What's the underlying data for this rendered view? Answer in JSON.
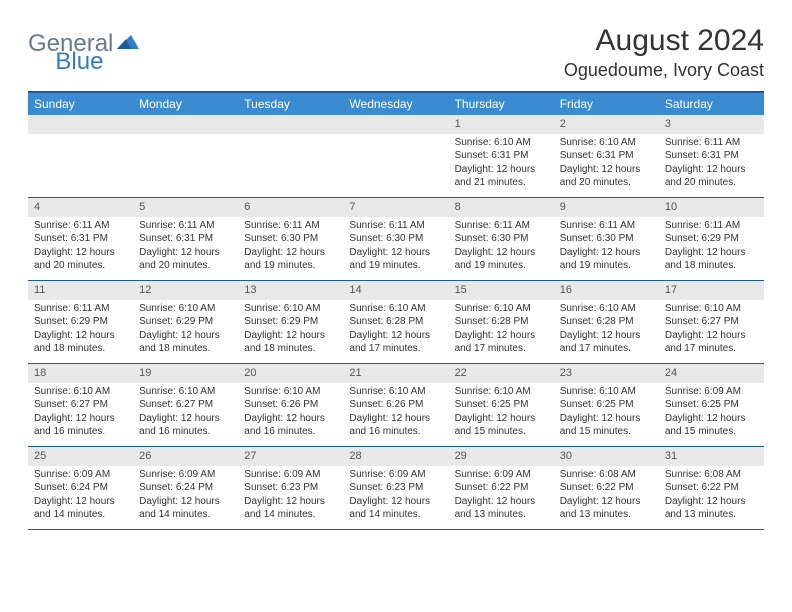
{
  "logo": {
    "text1": "General",
    "text2": "Blue"
  },
  "title": "August 2024",
  "location": "Oguedoume, Ivory Coast",
  "colors": {
    "header_bg": "#3b8bd0",
    "header_border": "#1d5c9b",
    "daynum_bg": "#e8e8e8",
    "logo_gray": "#6b7a85",
    "logo_blue": "#2f7bc4",
    "text": "#333333"
  },
  "weekdays": [
    "Sunday",
    "Monday",
    "Tuesday",
    "Wednesday",
    "Thursday",
    "Friday",
    "Saturday"
  ],
  "weeks": [
    [
      {
        "empty": true
      },
      {
        "empty": true
      },
      {
        "empty": true
      },
      {
        "empty": true
      },
      {
        "day": "1",
        "sunrise": "Sunrise: 6:10 AM",
        "sunset": "Sunset: 6:31 PM",
        "dl1": "Daylight: 12 hours",
        "dl2": "and 21 minutes."
      },
      {
        "day": "2",
        "sunrise": "Sunrise: 6:10 AM",
        "sunset": "Sunset: 6:31 PM",
        "dl1": "Daylight: 12 hours",
        "dl2": "and 20 minutes."
      },
      {
        "day": "3",
        "sunrise": "Sunrise: 6:11 AM",
        "sunset": "Sunset: 6:31 PM",
        "dl1": "Daylight: 12 hours",
        "dl2": "and 20 minutes."
      }
    ],
    [
      {
        "day": "4",
        "sunrise": "Sunrise: 6:11 AM",
        "sunset": "Sunset: 6:31 PM",
        "dl1": "Daylight: 12 hours",
        "dl2": "and 20 minutes."
      },
      {
        "day": "5",
        "sunrise": "Sunrise: 6:11 AM",
        "sunset": "Sunset: 6:31 PM",
        "dl1": "Daylight: 12 hours",
        "dl2": "and 20 minutes."
      },
      {
        "day": "6",
        "sunrise": "Sunrise: 6:11 AM",
        "sunset": "Sunset: 6:30 PM",
        "dl1": "Daylight: 12 hours",
        "dl2": "and 19 minutes."
      },
      {
        "day": "7",
        "sunrise": "Sunrise: 6:11 AM",
        "sunset": "Sunset: 6:30 PM",
        "dl1": "Daylight: 12 hours",
        "dl2": "and 19 minutes."
      },
      {
        "day": "8",
        "sunrise": "Sunrise: 6:11 AM",
        "sunset": "Sunset: 6:30 PM",
        "dl1": "Daylight: 12 hours",
        "dl2": "and 19 minutes."
      },
      {
        "day": "9",
        "sunrise": "Sunrise: 6:11 AM",
        "sunset": "Sunset: 6:30 PM",
        "dl1": "Daylight: 12 hours",
        "dl2": "and 19 minutes."
      },
      {
        "day": "10",
        "sunrise": "Sunrise: 6:11 AM",
        "sunset": "Sunset: 6:29 PM",
        "dl1": "Daylight: 12 hours",
        "dl2": "and 18 minutes."
      }
    ],
    [
      {
        "day": "11",
        "sunrise": "Sunrise: 6:11 AM",
        "sunset": "Sunset: 6:29 PM",
        "dl1": "Daylight: 12 hours",
        "dl2": "and 18 minutes."
      },
      {
        "day": "12",
        "sunrise": "Sunrise: 6:10 AM",
        "sunset": "Sunset: 6:29 PM",
        "dl1": "Daylight: 12 hours",
        "dl2": "and 18 minutes."
      },
      {
        "day": "13",
        "sunrise": "Sunrise: 6:10 AM",
        "sunset": "Sunset: 6:29 PM",
        "dl1": "Daylight: 12 hours",
        "dl2": "and 18 minutes."
      },
      {
        "day": "14",
        "sunrise": "Sunrise: 6:10 AM",
        "sunset": "Sunset: 6:28 PM",
        "dl1": "Daylight: 12 hours",
        "dl2": "and 17 minutes."
      },
      {
        "day": "15",
        "sunrise": "Sunrise: 6:10 AM",
        "sunset": "Sunset: 6:28 PM",
        "dl1": "Daylight: 12 hours",
        "dl2": "and 17 minutes."
      },
      {
        "day": "16",
        "sunrise": "Sunrise: 6:10 AM",
        "sunset": "Sunset: 6:28 PM",
        "dl1": "Daylight: 12 hours",
        "dl2": "and 17 minutes."
      },
      {
        "day": "17",
        "sunrise": "Sunrise: 6:10 AM",
        "sunset": "Sunset: 6:27 PM",
        "dl1": "Daylight: 12 hours",
        "dl2": "and 17 minutes."
      }
    ],
    [
      {
        "day": "18",
        "sunrise": "Sunrise: 6:10 AM",
        "sunset": "Sunset: 6:27 PM",
        "dl1": "Daylight: 12 hours",
        "dl2": "and 16 minutes."
      },
      {
        "day": "19",
        "sunrise": "Sunrise: 6:10 AM",
        "sunset": "Sunset: 6:27 PM",
        "dl1": "Daylight: 12 hours",
        "dl2": "and 16 minutes."
      },
      {
        "day": "20",
        "sunrise": "Sunrise: 6:10 AM",
        "sunset": "Sunset: 6:26 PM",
        "dl1": "Daylight: 12 hours",
        "dl2": "and 16 minutes."
      },
      {
        "day": "21",
        "sunrise": "Sunrise: 6:10 AM",
        "sunset": "Sunset: 6:26 PM",
        "dl1": "Daylight: 12 hours",
        "dl2": "and 16 minutes."
      },
      {
        "day": "22",
        "sunrise": "Sunrise: 6:10 AM",
        "sunset": "Sunset: 6:25 PM",
        "dl1": "Daylight: 12 hours",
        "dl2": "and 15 minutes."
      },
      {
        "day": "23",
        "sunrise": "Sunrise: 6:10 AM",
        "sunset": "Sunset: 6:25 PM",
        "dl1": "Daylight: 12 hours",
        "dl2": "and 15 minutes."
      },
      {
        "day": "24",
        "sunrise": "Sunrise: 6:09 AM",
        "sunset": "Sunset: 6:25 PM",
        "dl1": "Daylight: 12 hours",
        "dl2": "and 15 minutes."
      }
    ],
    [
      {
        "day": "25",
        "sunrise": "Sunrise: 6:09 AM",
        "sunset": "Sunset: 6:24 PM",
        "dl1": "Daylight: 12 hours",
        "dl2": "and 14 minutes."
      },
      {
        "day": "26",
        "sunrise": "Sunrise: 6:09 AM",
        "sunset": "Sunset: 6:24 PM",
        "dl1": "Daylight: 12 hours",
        "dl2": "and 14 minutes."
      },
      {
        "day": "27",
        "sunrise": "Sunrise: 6:09 AM",
        "sunset": "Sunset: 6:23 PM",
        "dl1": "Daylight: 12 hours",
        "dl2": "and 14 minutes."
      },
      {
        "day": "28",
        "sunrise": "Sunrise: 6:09 AM",
        "sunset": "Sunset: 6:23 PM",
        "dl1": "Daylight: 12 hours",
        "dl2": "and 14 minutes."
      },
      {
        "day": "29",
        "sunrise": "Sunrise: 6:09 AM",
        "sunset": "Sunset: 6:22 PM",
        "dl1": "Daylight: 12 hours",
        "dl2": "and 13 minutes."
      },
      {
        "day": "30",
        "sunrise": "Sunrise: 6:08 AM",
        "sunset": "Sunset: 6:22 PM",
        "dl1": "Daylight: 12 hours",
        "dl2": "and 13 minutes."
      },
      {
        "day": "31",
        "sunrise": "Sunrise: 6:08 AM",
        "sunset": "Sunset: 6:22 PM",
        "dl1": "Daylight: 12 hours",
        "dl2": "and 13 minutes."
      }
    ]
  ]
}
